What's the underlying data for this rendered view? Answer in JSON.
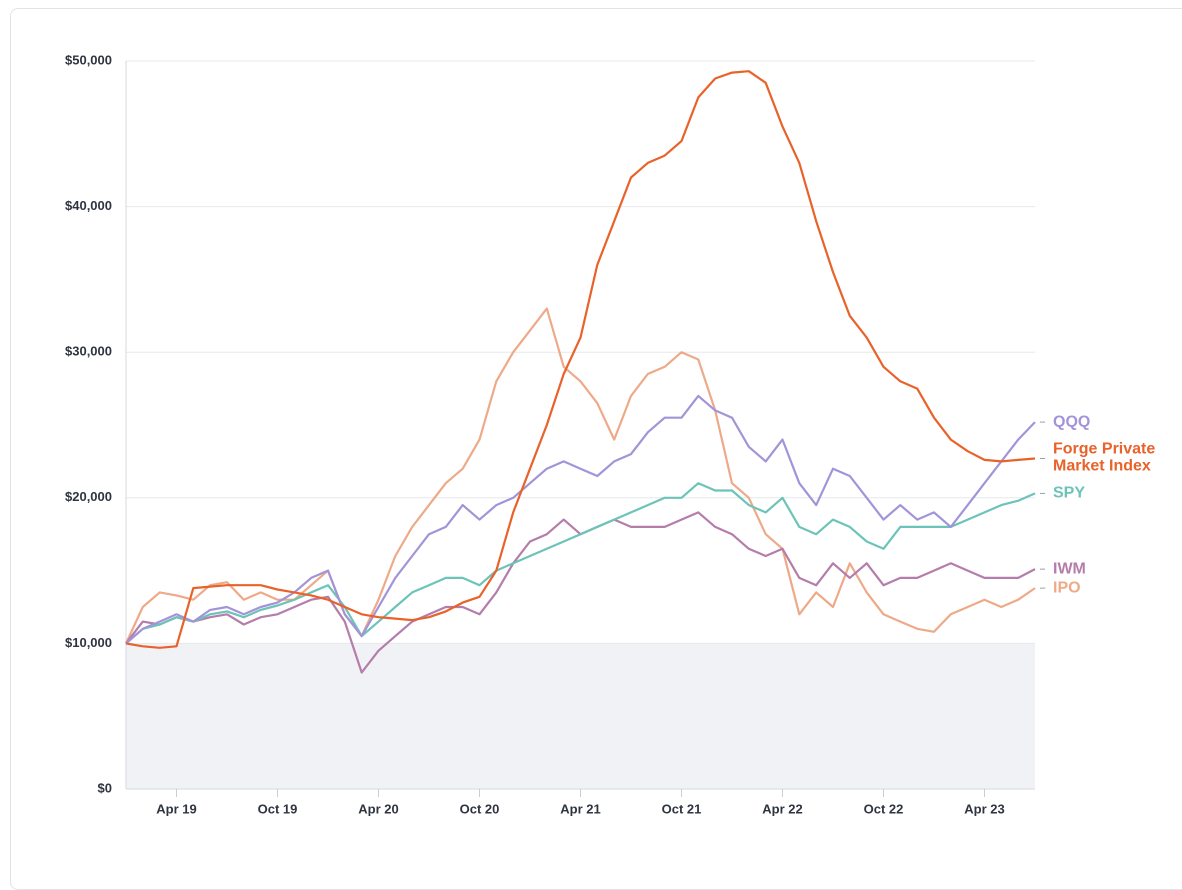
{
  "chart_data": {
    "type": "line",
    "categories": [
      null,
      null,
      null,
      "Apr 19",
      null,
      null,
      null,
      null,
      null,
      "Oct 19",
      null,
      null,
      null,
      null,
      null,
      "Apr 20",
      null,
      null,
      null,
      null,
      null,
      "Oct 20",
      null,
      null,
      null,
      null,
      null,
      "Apr 21",
      null,
      null,
      null,
      null,
      null,
      "Oct 21",
      null,
      null,
      null,
      null,
      null,
      "Apr 22",
      null,
      null,
      null,
      null,
      null,
      "Oct 22",
      null,
      null,
      null,
      null,
      null,
      "Apr 23",
      null,
      null,
      null
    ],
    "series": [
      {
        "name": "QQQ",
        "color": "#a393d9",
        "values": [
          10000,
          11000,
          11500,
          12000,
          11500,
          12300,
          12500,
          12000,
          12500,
          12800,
          13500,
          14500,
          15000,
          12000,
          10500,
          12500,
          14500,
          16000,
          17500,
          18000,
          19500,
          18500,
          19500,
          20000,
          21000,
          22000,
          22500,
          22000,
          21500,
          22500,
          23000,
          24500,
          25500,
          25500,
          27000,
          26000,
          25500,
          23500,
          22500,
          24000,
          21000,
          19500,
          22000,
          21500,
          20000,
          18500,
          19500,
          18500,
          19000,
          18000,
          19500,
          21000,
          22500,
          24000,
          25200
        ]
      },
      {
        "name": "Forge Private Market Index",
        "color": "#e8622a",
        "values": [
          10000,
          9800,
          9700,
          9800,
          13800,
          13900,
          14000,
          14000,
          14000,
          13700,
          13500,
          13300,
          13000,
          12500,
          12000,
          11800,
          11700,
          11600,
          11800,
          12200,
          12800,
          13200,
          15000,
          19000,
          22000,
          25000,
          28500,
          31000,
          36000,
          39000,
          42000,
          43000,
          43500,
          44500,
          47500,
          48800,
          49200,
          49300,
          48500,
          45500,
          43000,
          39000,
          35500,
          32500,
          31000,
          29000,
          28000,
          27500,
          25500,
          24000,
          23200,
          22600,
          22500,
          22600,
          22700
        ]
      },
      {
        "name": "SPY",
        "color": "#6cc3b8",
        "values": [
          10000,
          11000,
          11300,
          11800,
          11500,
          12000,
          12200,
          11800,
          12300,
          12600,
          13000,
          13500,
          14000,
          12500,
          10500,
          11500,
          12500,
          13500,
          14000,
          14500,
          14500,
          14000,
          15000,
          15500,
          16000,
          16500,
          17000,
          17500,
          18000,
          18500,
          19000,
          19500,
          20000,
          20000,
          21000,
          20500,
          20500,
          19500,
          19000,
          20000,
          18000,
          17500,
          18500,
          18000,
          17000,
          16500,
          18000,
          18000,
          18000,
          18000,
          18500,
          19000,
          19500,
          19800,
          20300
        ]
      },
      {
        "name": "IWM",
        "color": "#b47daa",
        "values": [
          10000,
          11500,
          11300,
          11800,
          11500,
          11800,
          12000,
          11300,
          11800,
          12000,
          12500,
          13000,
          13200,
          11500,
          8000,
          9500,
          10500,
          11500,
          12000,
          12500,
          12500,
          12000,
          13500,
          15500,
          17000,
          17500,
          18500,
          17500,
          18000,
          18500,
          18000,
          18000,
          18000,
          18500,
          19000,
          18000,
          17500,
          16500,
          16000,
          16500,
          14500,
          14000,
          15500,
          14500,
          15500,
          14000,
          14500,
          14500,
          15000,
          15500,
          15000,
          14500,
          14500,
          14500,
          15100
        ]
      },
      {
        "name": "IPO",
        "color": "#eeaa88",
        "values": [
          10000,
          12500,
          13500,
          13300,
          13000,
          14000,
          14200,
          13000,
          13500,
          13000,
          13000,
          14000,
          15000,
          12000,
          10500,
          13000,
          16000,
          18000,
          19500,
          21000,
          22000,
          24000,
          28000,
          30000,
          31500,
          33000,
          29000,
          28000,
          26500,
          24000,
          27000,
          28500,
          29000,
          30000,
          29500,
          26000,
          21000,
          20000,
          17500,
          16500,
          12000,
          13500,
          12500,
          15500,
          13500,
          12000,
          11500,
          11000,
          10800,
          12000,
          12500,
          13000,
          12500,
          13000,
          13800
        ]
      }
    ],
    "ylim": [
      0,
      50000
    ],
    "yticks": [
      {
        "value": 0,
        "label": "$0"
      },
      {
        "value": 10000,
        "label": "$10,000"
      },
      {
        "value": 20000,
        "label": "$20,000"
      },
      {
        "value": 30000,
        "label": "$30,000"
      },
      {
        "value": 40000,
        "label": "$40,000"
      },
      {
        "value": 50000,
        "label": "$50,000"
      }
    ],
    "shaded_below": 10000,
    "grid": true
  }
}
